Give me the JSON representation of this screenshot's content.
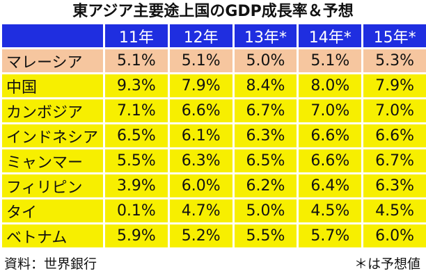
{
  "title": "東アジア主要途上国のGDP成長率＆予想",
  "source": "資料：世界銀行",
  "note": "＊は予想値",
  "colors": {
    "header": "#1f2ee0",
    "highlight_row": "#f6c69f",
    "data_row": "#f7ef00",
    "grid": "#ffffff"
  },
  "chart_data": {
    "type": "table",
    "title": "東アジア主要途上国のGDP成長率＆予想",
    "columns": [
      "11年",
      "12年",
      "13年*",
      "14年*",
      "15年*"
    ],
    "rows": [
      {
        "name": "マレーシア",
        "values": [
          "5.1%",
          "5.1%",
          "5.0%",
          "5.1%",
          "5.3%"
        ],
        "highlight": true
      },
      {
        "name": "中国",
        "values": [
          "9.3%",
          "7.9%",
          "8.4%",
          "8.0%",
          "7.9%"
        ],
        "highlight": false
      },
      {
        "name": "カンボジア",
        "values": [
          "7.1%",
          "6.6%",
          "6.7%",
          "7.0%",
          "7.0%"
        ],
        "highlight": false
      },
      {
        "name": "インドネシア",
        "values": [
          "6.5%",
          "6.1%",
          "6.3%",
          "6.6%",
          "6.6%"
        ],
        "highlight": false
      },
      {
        "name": "ミャンマー",
        "values": [
          "5.5%",
          "6.3%",
          "6.5%",
          "6.6%",
          "6.7%"
        ],
        "highlight": false
      },
      {
        "name": "フィリピン",
        "values": [
          "3.9%",
          "6.0%",
          "6.2%",
          "6.4%",
          "6.3%"
        ],
        "highlight": false
      },
      {
        "name": "タイ",
        "values": [
          "0.1%",
          "4.7%",
          "5.0%",
          "4.5%",
          "4.5%"
        ],
        "highlight": false
      },
      {
        "name": "ベトナム",
        "values": [
          "5.9%",
          "5.2%",
          "5.5%",
          "5.7%",
          "6.0%"
        ],
        "highlight": false
      }
    ]
  }
}
